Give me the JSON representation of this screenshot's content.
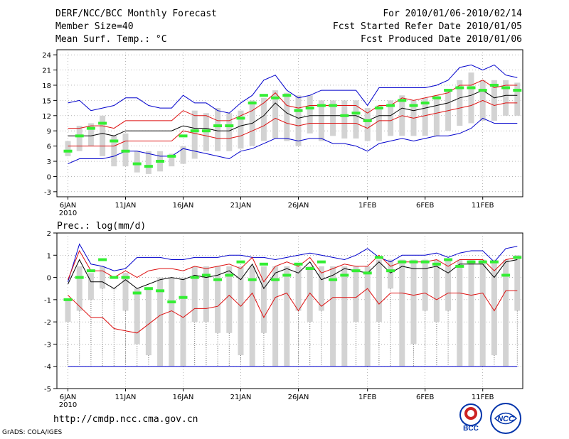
{
  "header": {
    "title": "DERF/NCC/BCC Monthly Forecast",
    "member_size": "Member Size=40",
    "variable": "Mean Surf. Temp.: °C",
    "period": "For 2010/01/06-2010/02/14",
    "start_date": "Fcst Started Refer Date 2010/01/05",
    "produced_date": "Fcst Produced Date 2010/01/06"
  },
  "footer": {
    "url": "http://cmdp.ncc.cma.gov.cn",
    "credit": "GrADS: COLA/IGES",
    "logo_bcc": "BCC",
    "logo_ncc": "NCC"
  },
  "colors": {
    "box": "#d3d3d3",
    "median": "#000000",
    "sd": "#dd1111",
    "extreme": "#0000cc",
    "observed": "#33ee33",
    "grid": "#888888"
  },
  "chart_data": [
    {
      "name": "temperature",
      "type": "box-line",
      "label": "",
      "ylim": [
        -4,
        25
      ],
      "yticks": [
        -3,
        0,
        3,
        6,
        9,
        12,
        15,
        18,
        21,
        24
      ],
      "xticks": [
        {
          "day": 0,
          "label": "6JAN"
        },
        {
          "day": 5,
          "label": "11JAN"
        },
        {
          "day": 10,
          "label": "16JAN"
        },
        {
          "day": 15,
          "label": "21JAN"
        },
        {
          "day": 20,
          "label": "26JAN"
        },
        {
          "day": 26,
          "label": "1FEB"
        },
        {
          "day": 31,
          "label": "6FEB"
        },
        {
          "day": 36,
          "label": "11FEB"
        }
      ],
      "year_label": "2010",
      "box_low": [
        4,
        5,
        6,
        4,
        2,
        2,
        0.8,
        0.5,
        1,
        2,
        2.5,
        3.5,
        5,
        5,
        5,
        5.5,
        6,
        7,
        7.5,
        7,
        6,
        8.5,
        7,
        8,
        7.5,
        7.5,
        7,
        7,
        8,
        8,
        8,
        8,
        8,
        9,
        10,
        10.5,
        11,
        11,
        12,
        12
      ],
      "box_high": [
        7,
        10,
        10.5,
        12,
        8,
        8.5,
        5,
        5,
        5,
        4.5,
        6,
        13,
        12.5,
        13.5,
        12.5,
        13,
        15,
        15.5,
        17,
        16.5,
        16,
        16,
        15,
        15,
        15,
        15,
        13.5,
        14,
        15,
        16,
        15,
        15.5,
        16,
        17,
        19,
        20.5,
        19,
        19,
        19,
        18.5
      ],
      "median": [
        8,
        8,
        8,
        8.5,
        8,
        9,
        9,
        9,
        9,
        9,
        10,
        9.5,
        9.5,
        9,
        9,
        10,
        10.5,
        12,
        14.5,
        12.5,
        11.5,
        12,
        12,
        12,
        12,
        12,
        11,
        12,
        12,
        13.5,
        13,
        13.5,
        14,
        14.5,
        15.5,
        16,
        17,
        15.5,
        16,
        16
      ],
      "sd_high": [
        9.5,
        9.5,
        10,
        10,
        9.5,
        11,
        11,
        11,
        11,
        11,
        13,
        12,
        12,
        11,
        11,
        12,
        13,
        14.5,
        16.5,
        14,
        13.5,
        14,
        14,
        14,
        14,
        14,
        12.5,
        14,
        14,
        15.5,
        15,
        15.5,
        16,
        16.5,
        18,
        18,
        19,
        17.5,
        18,
        18
      ],
      "sd_low": [
        6,
        6,
        6,
        6,
        6,
        7,
        7,
        7,
        7,
        7,
        9,
        8.5,
        8,
        7.5,
        7.5,
        8,
        9,
        10,
        11.5,
        10.5,
        10,
        10.5,
        10.5,
        10.5,
        10.5,
        10.5,
        9.5,
        11,
        11,
        12,
        11.5,
        12,
        12.5,
        13,
        13.5,
        14,
        15,
        14,
        14.5,
        14.5
      ],
      "max": [
        14.5,
        15,
        13,
        13.5,
        14,
        15.5,
        15.5,
        14,
        13.5,
        13.5,
        16,
        14.5,
        14.5,
        13,
        12.5,
        14.5,
        16,
        19,
        20,
        17,
        15.5,
        16,
        17,
        17,
        17,
        17,
        14,
        17.5,
        17.5,
        17.5,
        17.5,
        17.5,
        18,
        19,
        21.5,
        22,
        21,
        22,
        20,
        19.5
      ],
      "min": [
        2.5,
        3.5,
        3.5,
        3.5,
        4,
        5,
        5,
        4.5,
        4,
        4,
        5.5,
        5,
        4.5,
        4,
        3.5,
        5,
        5.5,
        6.5,
        7.5,
        7.5,
        7,
        7.5,
        7.5,
        6.5,
        6.5,
        6,
        5,
        6.5,
        7,
        7.5,
        7,
        7.5,
        8,
        8,
        8.5,
        9.5,
        11.5,
        10.5,
        10.5,
        10.5
      ],
      "observed": [
        5,
        8,
        9.5,
        10.5,
        7,
        5,
        2.5,
        2,
        3,
        4,
        8,
        9,
        9,
        10,
        10,
        11.5,
        14.5,
        16,
        15.5,
        16,
        13,
        13.5,
        14,
        14,
        12,
        12.5,
        11,
        13.5,
        14,
        15,
        14,
        14.5,
        15.5,
        17,
        17.5,
        17.5,
        17,
        18,
        17.5,
        17
      ]
    },
    {
      "name": "precipitation",
      "type": "box-line",
      "label": "Prec.: log(mm/d)",
      "ylim": [
        -5,
        2
      ],
      "yticks": [
        -5,
        -4,
        -3,
        -2,
        -1,
        0,
        1,
        2
      ],
      "xticks": [
        {
          "day": 0,
          "label": "6JAN"
        },
        {
          "day": 5,
          "label": "11JAN"
        },
        {
          "day": 10,
          "label": "16JAN"
        },
        {
          "day": 15,
          "label": "21JAN"
        },
        {
          "day": 20,
          "label": "26JAN"
        },
        {
          "day": 26,
          "label": "1FEB"
        },
        {
          "day": 31,
          "label": "6FEB"
        },
        {
          "day": 36,
          "label": "11FEB"
        }
      ],
      "year_label": "2010",
      "floor_value": -4,
      "box_low": [
        -2,
        -1.5,
        -1,
        -0.5,
        -0.5,
        -1.5,
        -3,
        -3.5,
        -4,
        -4,
        -4,
        -2,
        -2,
        -2.5,
        -2.5,
        -3.5,
        -4,
        -2.5,
        -4,
        -4,
        -1.5,
        -2,
        -1.5,
        -4,
        -4,
        -2,
        -4,
        -2,
        -0.5,
        -4,
        -3,
        -1.5,
        -2,
        -1.5,
        -4,
        -4,
        -4,
        -3.5,
        -4,
        -1.5
      ],
      "box_high": [
        -1,
        0.5,
        0.2,
        0.5,
        -0.5,
        0.2,
        -0.5,
        -0.5,
        0,
        0,
        0,
        0.5,
        0.5,
        0.5,
        0.5,
        0.5,
        0.5,
        0.5,
        0.5,
        0.5,
        0.5,
        0.5,
        0.5,
        0.5,
        0.5,
        0.5,
        0.5,
        0.8,
        0.8,
        0.8,
        0.8,
        0.8,
        0.8,
        0.8,
        0.8,
        0.8,
        0.8,
        0.8,
        0.8,
        1
      ],
      "median": [
        -0.3,
        0.8,
        -0.2,
        -0.2,
        -0.5,
        -0.1,
        -0.5,
        -0.3,
        -0.1,
        0,
        -0.1,
        0.1,
        0,
        0.1,
        0.3,
        -0.1,
        0.6,
        -0.5,
        0.2,
        0.4,
        0.2,
        0.7,
        -0.1,
        0.1,
        0.4,
        0.3,
        0.2,
        0.7,
        0.2,
        0.5,
        0.4,
        0.4,
        0.5,
        0.2,
        0.6,
        0.6,
        0.6,
        0,
        0.7,
        0.8
      ],
      "sd_high": [
        -0.1,
        1.2,
        0.3,
        0.3,
        0,
        0.3,
        0,
        0.3,
        0.4,
        0.4,
        0.3,
        0.5,
        0.4,
        0.5,
        0.6,
        0.4,
        0.9,
        -0.2,
        0.5,
        0.7,
        0.5,
        0.9,
        0.2,
        0.4,
        0.6,
        0.5,
        0.5,
        1,
        0.5,
        0.7,
        0.7,
        0.7,
        0.8,
        0.5,
        0.8,
        0.8,
        0.8,
        0.3,
        0.8,
        0.9
      ],
      "sd_low": [
        -0.8,
        -1.3,
        -1.8,
        -1.8,
        -2.3,
        -2.4,
        -2.5,
        -2.1,
        -1.7,
        -1.5,
        -1.8,
        -1.4,
        -1.4,
        -1.3,
        -0.8,
        -1.3,
        -0.7,
        -1.8,
        -0.9,
        -0.7,
        -1.5,
        -0.7,
        -1.3,
        -0.9,
        -0.9,
        -0.9,
        -0.5,
        -1.2,
        -0.7,
        -0.7,
        -0.8,
        -0.7,
        -1,
        -0.7,
        -0.7,
        -0.8,
        -0.7,
        -1.5,
        -0.6,
        -0.6
      ],
      "max": [
        -0.2,
        1.5,
        0.6,
        0.5,
        0.3,
        0.4,
        0.9,
        0.9,
        0.9,
        0.8,
        0.8,
        0.9,
        0.9,
        0.9,
        1,
        1,
        0.9,
        0.9,
        0.8,
        0.9,
        1,
        1.1,
        1,
        0.9,
        0.8,
        1,
        1.3,
        0.9,
        0.7,
        1,
        1,
        1,
        1.1,
        0.9,
        1.1,
        1.2,
        1.2,
        0.7,
        1.3,
        1.4
      ],
      "min": [
        -4,
        -4,
        -4,
        -4,
        -4,
        -4,
        -4,
        -4,
        -4,
        -4,
        -4,
        -4,
        -4,
        -4,
        -4,
        -4,
        -4,
        -4,
        -4,
        -4,
        -4,
        -4,
        -4,
        -4,
        -4,
        -4,
        -4,
        -4,
        -4,
        -4,
        -4,
        -4,
        -4,
        -4,
        -4,
        -4,
        -4,
        -4,
        -4,
        -4
      ],
      "observed": [
        -1,
        0,
        0.3,
        0.8,
        0,
        0,
        -0.7,
        -0.5,
        -0.6,
        -1.1,
        -0.9,
        0,
        0.1,
        -0.1,
        0.1,
        0.7,
        -0.1,
        0.6,
        -0.1,
        0.1,
        0.6,
        0.4,
        0.7,
        -0.1,
        0.1,
        0.3,
        0.2,
        0.9,
        0.3,
        0.7,
        0.7,
        0.7,
        0.6,
        0.8,
        0.5,
        0.7,
        0.7,
        0.7,
        0.1,
        0.9
      ]
    }
  ]
}
